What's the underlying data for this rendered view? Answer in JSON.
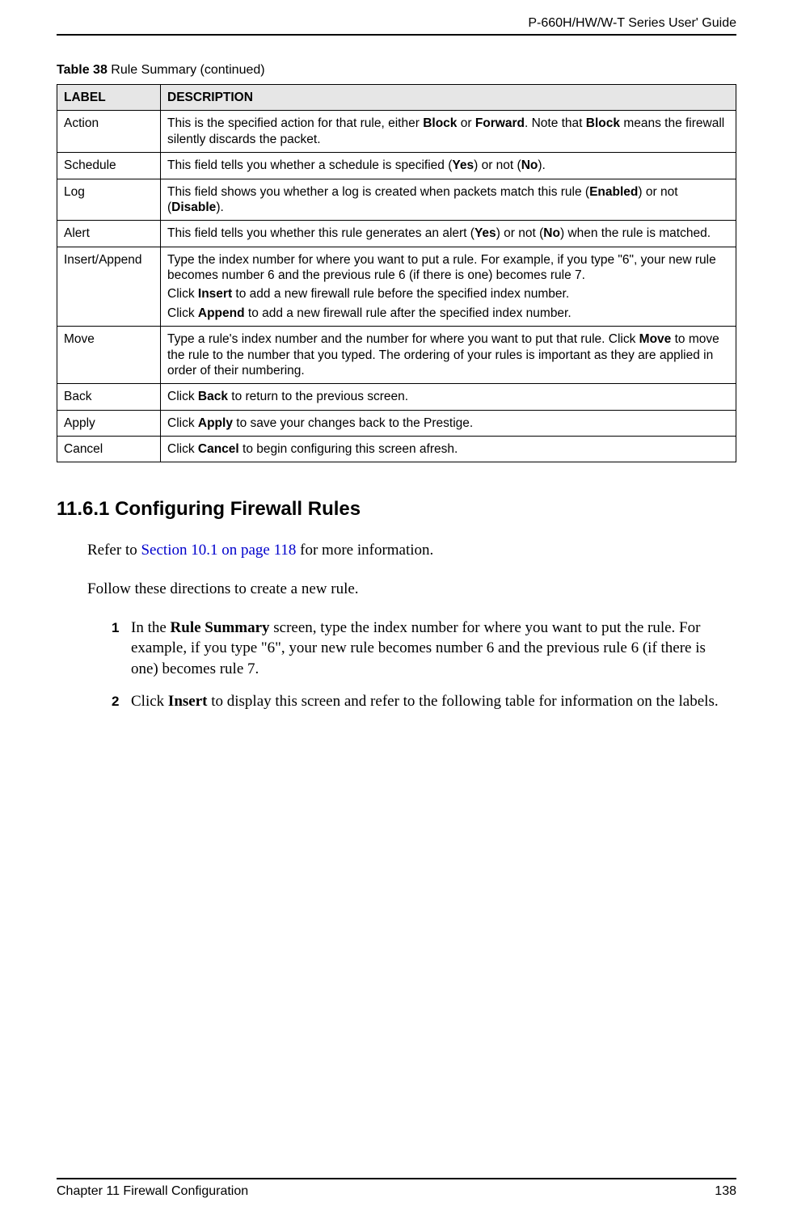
{
  "header": {
    "guide_title": "P-660H/HW/W-T Series User' Guide"
  },
  "table": {
    "caption_prefix": "Table 38",
    "caption_rest": "   Rule Summary (continued)",
    "columns": [
      "LABEL",
      "DESCRIPTION"
    ],
    "rows": [
      {
        "label": "Action",
        "desc_segments": [
          {
            "t": "This is the specified action for that rule, either "
          },
          {
            "t": "Block",
            "b": true
          },
          {
            "t": " or "
          },
          {
            "t": "Forward",
            "b": true
          },
          {
            "t": ". Note that "
          },
          {
            "t": "Block",
            "b": true
          },
          {
            "t": " means the firewall silently discards the packet."
          }
        ]
      },
      {
        "label": "Schedule",
        "desc_segments": [
          {
            "t": "This field tells you whether a schedule is specified ("
          },
          {
            "t": "Yes",
            "b": true
          },
          {
            "t": ") or not ("
          },
          {
            "t": "No",
            "b": true
          },
          {
            "t": ")."
          }
        ]
      },
      {
        "label": "Log",
        "desc_segments": [
          {
            "t": "This field shows you whether a log is created when packets match this rule ("
          },
          {
            "t": "Enabled",
            "b": true
          },
          {
            "t": ") or not ("
          },
          {
            "t": "Disable",
            "b": true
          },
          {
            "t": ")."
          }
        ]
      },
      {
        "label": "Alert",
        "desc_segments": [
          {
            "t": "This field tells you whether this rule generates an alert ("
          },
          {
            "t": "Yes",
            "b": true
          },
          {
            "t": ") or not ("
          },
          {
            "t": "No",
            "b": true
          },
          {
            "t": ") when the rule is matched."
          }
        ]
      },
      {
        "label": "Insert/Append",
        "desc_paragraphs": [
          [
            {
              "t": "Type the index number for where you want to put a rule. For example, if you type \"6\", your new rule becomes number 6 and the previous rule 6 (if there is one) becomes rule 7."
            }
          ],
          [
            {
              "t": "Click "
            },
            {
              "t": "Insert",
              "b": true
            },
            {
              "t": " to add a new firewall rule before the specified index number."
            }
          ],
          [
            {
              "t": "Click "
            },
            {
              "t": "Append",
              "b": true
            },
            {
              "t": " to add a new firewall rule after the specified index number."
            }
          ]
        ]
      },
      {
        "label": "Move",
        "desc_segments": [
          {
            "t": "Type a rule's index number and the number for where you want to put that rule. Click "
          },
          {
            "t": "Move",
            "b": true
          },
          {
            "t": " to move the rule to the number that you typed. The ordering of your rules is important as they are applied in order of their numbering."
          }
        ]
      },
      {
        "label": "Back",
        "desc_segments": [
          {
            "t": "Click "
          },
          {
            "t": "Back",
            "b": true
          },
          {
            "t": " to return to the previous screen."
          }
        ]
      },
      {
        "label": "Apply",
        "desc_segments": [
          {
            "t": "Click "
          },
          {
            "t": "Apply",
            "b": true
          },
          {
            "t": " to save your changes back to the Prestige."
          }
        ]
      },
      {
        "label": "Cancel",
        "desc_segments": [
          {
            "t": "Click "
          },
          {
            "t": "Cancel",
            "b": true
          },
          {
            "t": " to begin configuring this screen afresh."
          }
        ]
      }
    ]
  },
  "section": {
    "heading": "11.6.1  Configuring Firewall Rules",
    "refer_pre": "Refer to ",
    "refer_link": "Section 10.1 on page 118",
    "refer_post": " for more information.",
    "follow": "Follow these directions to create a new rule.",
    "steps": [
      {
        "num": "1",
        "segments": [
          {
            "t": "In the "
          },
          {
            "t": "Rule Summary",
            "b": true
          },
          {
            "t": " screen, type the index number for where you want to put the rule. For example, if you type \"6\", your new rule becomes number 6 and the previous rule 6 (if there is one) becomes rule 7."
          }
        ]
      },
      {
        "num": "2",
        "segments": [
          {
            "t": "Click "
          },
          {
            "t": "Insert",
            "b": true
          },
          {
            "t": " to display this screen and refer to the following table for information on the labels."
          }
        ]
      }
    ]
  },
  "footer": {
    "chapter": "Chapter 11 Firewall Configuration",
    "page_number": "138"
  }
}
